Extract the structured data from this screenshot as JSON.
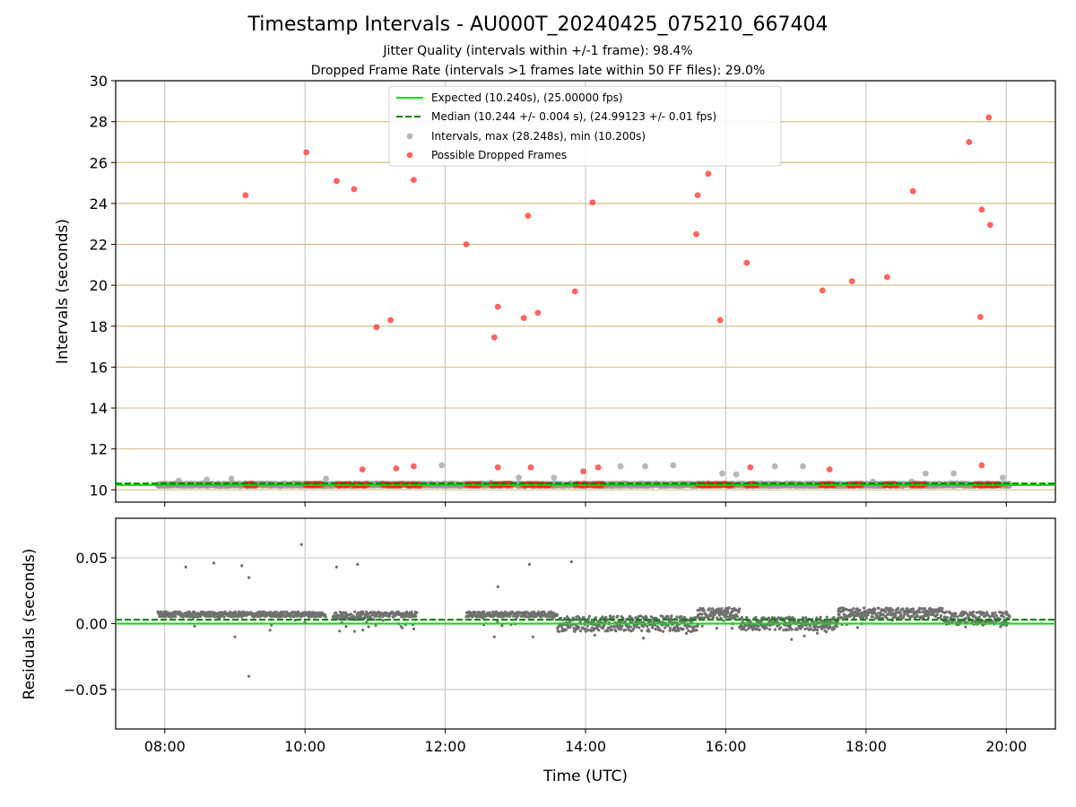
{
  "header": {
    "title": "Timestamp Intervals - AU000T_20240425_075210_667404",
    "subtitle_1": "Jitter Quality (intervals within +/-1 frame): 98.4%",
    "subtitle_2": "Dropped Frame Rate (intervals >1 frames late within 50 FF files): 29.0%"
  },
  "colors": {
    "expected": "#00e000",
    "median": "#008000",
    "intervals": "#999999",
    "dropped": "#ff2020",
    "residuals": "#707070",
    "hgrid_top": "#d4c28a",
    "grid": "#c8c8c8"
  },
  "chart_data": [
    {
      "type": "scatter",
      "title": "",
      "xlabel": "",
      "ylabel": "Intervals (seconds)",
      "xlim": [
        7.3,
        20.7
      ],
      "ylim": [
        9.4,
        30
      ],
      "yticks": [
        10,
        12,
        14,
        16,
        18,
        20,
        22,
        24,
        26,
        28,
        30
      ],
      "grid": true,
      "legend_position": "top-center",
      "legend": [
        "Expected (10.240s), (25.00000 fps)",
        "Median (10.244 +/- 0.004 s), (24.99123 +/- 0.01 fps)",
        "Intervals, max (28.248s), min (10.200s)",
        "Possible Dropped Frames"
      ],
      "expected_value": 10.24,
      "median_value": 10.244,
      "series": [
        {
          "name": "Intervals, max (28.248s), min (10.200s)",
          "note_band": "dense points near 10.2-10.3 across 07:52-20:02",
          "points": [
            [
              7.9,
              10.25
            ],
            [
              8.2,
              10.45
            ],
            [
              8.6,
              10.5
            ],
            [
              8.95,
              10.55
            ],
            [
              10.3,
              10.55
            ],
            [
              11.95,
              11.2
            ],
            [
              12.65,
              10.35
            ],
            [
              13.05,
              10.6
            ],
            [
              13.55,
              10.6
            ],
            [
              14.5,
              11.15
            ],
            [
              14.85,
              11.15
            ],
            [
              15.25,
              11.2
            ],
            [
              15.95,
              10.8
            ],
            [
              16.15,
              10.75
            ],
            [
              16.7,
              11.15
            ],
            [
              17.1,
              11.15
            ],
            [
              18.1,
              10.4
            ],
            [
              18.65,
              10.4
            ],
            [
              18.85,
              10.8
            ],
            [
              19.25,
              10.8
            ],
            [
              19.95,
              10.6
            ]
          ]
        },
        {
          "name": "Possible Dropped Frames",
          "points": [
            [
              9.15,
              24.4
            ],
            [
              10.02,
              26.5
            ],
            [
              10.45,
              25.1
            ],
            [
              10.7,
              24.7
            ],
            [
              10.82,
              11.0
            ],
            [
              11.02,
              17.95
            ],
            [
              11.22,
              18.3
            ],
            [
              11.3,
              11.05
            ],
            [
              11.55,
              25.15
            ],
            [
              11.55,
              11.15
            ],
            [
              12.3,
              22.0
            ],
            [
              12.7,
              17.45
            ],
            [
              12.75,
              18.95
            ],
            [
              12.75,
              11.1
            ],
            [
              13.12,
              18.4
            ],
            [
              13.18,
              23.4
            ],
            [
              13.22,
              11.1
            ],
            [
              13.32,
              18.65
            ],
            [
              13.85,
              19.7
            ],
            [
              13.97,
              10.9
            ],
            [
              14.1,
              24.05
            ],
            [
              14.18,
              11.1
            ],
            [
              15.58,
              22.5
            ],
            [
              15.6,
              24.4
            ],
            [
              15.75,
              25.45
            ],
            [
              15.92,
              18.3
            ],
            [
              16.3,
              21.1
            ],
            [
              16.35,
              11.1
            ],
            [
              17.38,
              19.75
            ],
            [
              17.48,
              11.0
            ],
            [
              17.8,
              20.2
            ],
            [
              18.3,
              20.4
            ],
            [
              18.67,
              24.6
            ],
            [
              19.47,
              27.0
            ],
            [
              19.63,
              18.45
            ],
            [
              19.65,
              23.7
            ],
            [
              19.65,
              11.2
            ],
            [
              19.75,
              28.2
            ],
            [
              19.77,
              22.95
            ]
          ],
          "baseline_clusters": [
            [
              9.15,
              9.3
            ],
            [
              10.0,
              10.25
            ],
            [
              10.45,
              10.65
            ],
            [
              10.7,
              10.9
            ],
            [
              11.1,
              11.4
            ],
            [
              11.45,
              11.65
            ],
            [
              12.3,
              12.5
            ],
            [
              12.65,
              12.95
            ],
            [
              13.1,
              13.5
            ],
            [
              13.85,
              14.05
            ],
            [
              14.1,
              14.25
            ],
            [
              15.6,
              16.1
            ],
            [
              16.3,
              16.45
            ],
            [
              17.35,
              17.55
            ],
            [
              17.75,
              17.95
            ],
            [
              18.25,
              18.45
            ],
            [
              18.65,
              18.85
            ],
            [
              19.55,
              19.9
            ]
          ]
        }
      ]
    },
    {
      "type": "scatter",
      "title": "",
      "xlabel": "Time (UTC)",
      "ylabel": "Residuals (seconds)",
      "xlim": [
        7.3,
        20.7
      ],
      "ylim": [
        -0.08,
        0.08
      ],
      "yticks": [
        0.05,
        0.0,
        -0.05
      ],
      "ytick_labels": [
        "0.05",
        "0.00",
        "−0.05"
      ],
      "xticks": [
        8,
        10,
        12,
        14,
        16,
        18,
        20
      ],
      "xtick_labels": [
        "08:00",
        "10:00",
        "12:00",
        "14:00",
        "16:00",
        "18:00",
        "20:00"
      ],
      "grid": true,
      "expected_value": 0.0,
      "median_value": 0.003,
      "series": [
        {
          "name": "Residuals",
          "outliers": [
            [
              8.3,
              0.043
            ],
            [
              8.7,
              0.046
            ],
            [
              9.1,
              0.044
            ],
            [
              9.2,
              0.035
            ],
            [
              9.2,
              -0.04
            ],
            [
              9.0,
              -0.01
            ],
            [
              9.5,
              -0.005
            ],
            [
              9.95,
              0.06
            ],
            [
              10.45,
              0.043
            ],
            [
              10.75,
              0.045
            ],
            [
              12.75,
              0.028
            ],
            [
              13.2,
              0.045
            ],
            [
              13.8,
              0.047
            ],
            [
              12.6,
              0.008
            ],
            [
              12.7,
              -0.01
            ],
            [
              13.25,
              -0.01
            ]
          ],
          "band_segments": [
            {
              "x": [
                7.9,
                10.3
              ],
              "center": 0.007,
              "spread": 0.002
            },
            {
              "x": [
                10.4,
                11.0
              ],
              "center": 0.006,
              "spread": 0.003
            },
            {
              "x": [
                11.0,
                11.6
              ],
              "center": 0.007,
              "spread": 0.002
            },
            {
              "x": [
                12.3,
                13.6
              ],
              "center": 0.007,
              "spread": 0.002
            },
            {
              "x": [
                13.6,
                15.6
              ],
              "center": 0.0,
              "spread": 0.006
            },
            {
              "x": [
                15.6,
                16.2
              ],
              "center": 0.008,
              "spread": 0.004
            },
            {
              "x": [
                16.2,
                17.6
              ],
              "center": 0.0,
              "spread": 0.005
            },
            {
              "x": [
                17.6,
                19.1
              ],
              "center": 0.008,
              "spread": 0.004
            },
            {
              "x": [
                19.1,
                20.05
              ],
              "center": 0.004,
              "spread": 0.005
            }
          ]
        }
      ]
    }
  ]
}
